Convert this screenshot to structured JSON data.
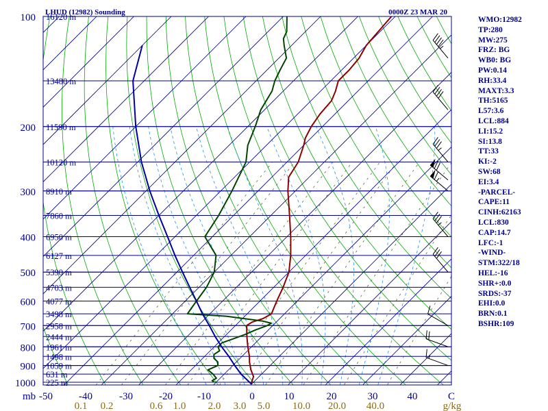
{
  "header": {
    "title": "LHUD (12982) Sounding",
    "time": "0000Z 23 MAR 20"
  },
  "chart_data": {
    "type": "line",
    "title": "LHUD (12982) Sounding",
    "subtitle": "0000Z 23 MAR 20",
    "y_axis": {
      "unit_label": "mb",
      "scale": "log",
      "range": [
        1000,
        100
      ],
      "tick_labels": [
        "100",
        "200",
        "300",
        "400",
        "500",
        "600",
        "700",
        "800",
        "900",
        "1000"
      ]
    },
    "x_axis": {
      "skewed": true,
      "temperature_range_c": [
        -50,
        50
      ],
      "tick_labels": [
        "-50",
        "-40",
        "-30",
        "-20",
        "-10",
        "0",
        "10",
        "20",
        "30",
        "40",
        "C"
      ],
      "mixing_ratio_labels": [
        "0.1",
        "0.2",
        "0.6",
        "1.0",
        "2.0",
        "3.0",
        "5.0",
        "10.0",
        "20.0",
        "40.0",
        "g/kg"
      ]
    },
    "height_labels": [
      {
        "p": 100,
        "label": "16120 m"
      },
      {
        "p": 150,
        "label": "13480 m"
      },
      {
        "p": 200,
        "label": "11590 m"
      },
      {
        "p": 250,
        "label": "10120 m"
      },
      {
        "p": 300,
        "label": "8910 m"
      },
      {
        "p": 350,
        "label": "7860 m"
      },
      {
        "p": 400,
        "label": "6950 m"
      },
      {
        "p": 450,
        "label": "6127 m"
      },
      {
        "p": 500,
        "label": "5390 m"
      },
      {
        "p": 550,
        "label": "4703 m"
      },
      {
        "p": 600,
        "label": "4077 m"
      },
      {
        "p": 650,
        "label": "3498 m"
      },
      {
        "p": 700,
        "label": "2958 m"
      },
      {
        "p": 750,
        "label": "2444 m"
      },
      {
        "p": 800,
        "label": "1961 m"
      },
      {
        "p": 850,
        "label": "1498 m"
      },
      {
        "p": 900,
        "label": "1059 m"
      },
      {
        "p": 950,
        "label": "631 m"
      },
      {
        "p": 1000,
        "label": "225 m"
      }
    ],
    "series": [
      {
        "type": "temperature",
        "color": "#8b0000",
        "points": [
          {
            "p": 1012,
            "t": 0.0
          },
          {
            "p": 1000,
            "t": -0.5
          },
          {
            "p": 965,
            "t": -1.5
          },
          {
            "p": 925,
            "t": -4.0
          },
          {
            "p": 880,
            "t": -6.5
          },
          {
            "p": 850,
            "t": -8.0
          },
          {
            "p": 800,
            "t": -11.0
          },
          {
            "p": 750,
            "t": -14.0
          },
          {
            "p": 700,
            "t": -17.0
          },
          {
            "p": 685,
            "t": -16.5
          },
          {
            "p": 670,
            "t": -14.5
          },
          {
            "p": 650,
            "t": -13.5
          },
          {
            "p": 600,
            "t": -15.5
          },
          {
            "p": 550,
            "t": -17.5
          },
          {
            "p": 500,
            "t": -20.0
          },
          {
            "p": 450,
            "t": -24.0
          },
          {
            "p": 400,
            "t": -29.0
          },
          {
            "p": 350,
            "t": -35.0
          },
          {
            "p": 300,
            "t": -42.0
          },
          {
            "p": 275,
            "t": -45.5
          },
          {
            "p": 250,
            "t": -47.0
          },
          {
            "p": 225,
            "t": -50.0
          },
          {
            "p": 215,
            "t": -51.5
          },
          {
            "p": 200,
            "t": -53.0
          },
          {
            "p": 185,
            "t": -54.0
          },
          {
            "p": 170,
            "t": -54.5
          },
          {
            "p": 160,
            "t": -56.0
          },
          {
            "p": 150,
            "t": -58.0
          },
          {
            "p": 140,
            "t": -58.0
          },
          {
            "p": 130,
            "t": -58.5
          },
          {
            "p": 120,
            "t": -60.0
          },
          {
            "p": 110,
            "t": -60.5
          },
          {
            "p": 100,
            "t": -61.0
          }
        ]
      },
      {
        "type": "dewpoint",
        "color": "#004400",
        "points": [
          {
            "p": 1000,
            "t": -10.5
          },
          {
            "p": 990,
            "t": -11.5
          },
          {
            "p": 975,
            "t": -11.0
          },
          {
            "p": 950,
            "t": -13.0
          },
          {
            "p": 925,
            "t": -15.5
          },
          {
            "p": 900,
            "t": -14.0
          },
          {
            "p": 880,
            "t": -15.0
          },
          {
            "p": 860,
            "t": -17.0
          },
          {
            "p": 840,
            "t": -18.0
          },
          {
            "p": 820,
            "t": -17.5
          },
          {
            "p": 800,
            "t": -19.0
          },
          {
            "p": 780,
            "t": -19.0
          },
          {
            "p": 760,
            "t": -17.0
          },
          {
            "p": 740,
            "t": -15.0
          },
          {
            "p": 720,
            "t": -13.5
          },
          {
            "p": 700,
            "t": -11.5
          },
          {
            "p": 690,
            "t": -11.0
          },
          {
            "p": 680,
            "t": -14.0
          },
          {
            "p": 660,
            "t": -25.0
          },
          {
            "p": 650,
            "t": -36.0
          },
          {
            "p": 600,
            "t": -37.0
          },
          {
            "p": 550,
            "t": -38.0
          },
          {
            "p": 500,
            "t": -40.0
          },
          {
            "p": 450,
            "t": -44.0
          },
          {
            "p": 400,
            "t": -52.0
          },
          {
            "p": 350,
            "t": -54.0
          },
          {
            "p": 300,
            "t": -57.0
          },
          {
            "p": 250,
            "t": -61.0
          },
          {
            "p": 225,
            "t": -65.0
          },
          {
            "p": 200,
            "t": -68.0
          },
          {
            "p": 180,
            "t": -71.0
          },
          {
            "p": 160,
            "t": -73.0
          },
          {
            "p": 150,
            "t": -75.0
          },
          {
            "p": 140,
            "t": -76.5
          },
          {
            "p": 130,
            "t": -78.0
          },
          {
            "p": 120,
            "t": -82.0
          },
          {
            "p": 115,
            "t": -84.0
          },
          {
            "p": 110,
            "t": -85.0
          },
          {
            "p": 100,
            "t": -89.0
          }
        ]
      },
      {
        "type": "parcel",
        "color": "#0000a0",
        "points": [
          {
            "p": 1012,
            "t": 0.0
          },
          {
            "p": 950,
            "t": -5.5
          },
          {
            "p": 900,
            "t": -9.5
          },
          {
            "p": 850,
            "t": -13.5
          },
          {
            "p": 800,
            "t": -18.0
          },
          {
            "p": 750,
            "t": -22.5
          },
          {
            "p": 700,
            "t": -27.0
          },
          {
            "p": 650,
            "t": -32.0
          },
          {
            "p": 600,
            "t": -37.0
          },
          {
            "p": 550,
            "t": -42.5
          },
          {
            "p": 500,
            "t": -48.5
          },
          {
            "p": 450,
            "t": -55.0
          },
          {
            "p": 400,
            "t": -62.0
          },
          {
            "p": 350,
            "t": -70.0
          },
          {
            "p": 300,
            "t": -79.0
          },
          {
            "p": 250,
            "t": -89.0
          },
          {
            "p": 200,
            "t": -100.0
          },
          {
            "p": 150,
            "t": -113.0
          },
          {
            "p": 120,
            "t": -120.0
          }
        ]
      }
    ],
    "wind_barbs": [
      {
        "p": 130,
        "dir": 320,
        "spd": 45
      },
      {
        "p": 180,
        "dir": 320,
        "spd": 40
      },
      {
        "p": 250,
        "dir": 320,
        "spd": 35
      },
      {
        "p": 280,
        "dir": 310,
        "spd": 70
      },
      {
        "p": 300,
        "dir": 310,
        "spd": 65
      },
      {
        "p": 400,
        "dir": 320,
        "spd": 35
      },
      {
        "p": 500,
        "dir": 320,
        "spd": 30
      },
      {
        "p": 700,
        "dir": 300,
        "spd": 10
      },
      {
        "p": 800,
        "dir": 290,
        "spd": 20
      },
      {
        "p": 900,
        "dir": 290,
        "spd": 15
      }
    ]
  },
  "indices": [
    "WMO:12982",
    "TP:280",
    "MW:275",
    "FRZ: BG",
    "WB0: BG",
    "PW:0.14",
    "RH:33.4",
    "MAXT:3.3",
    "TH:5165",
    "L57:3.6",
    "LCL:884",
    "LI:15.2",
    "SI:13.8",
    "TT:33",
    "KI:-2",
    "SW:68",
    "EI:3.4",
    "-PARCEL-",
    "CAPE:11",
    "CINH:62163",
    "LCL:830",
    "CAP:14.7",
    "LFC:-1",
    "-WIND-",
    "STM:322/18",
    "HEL:-16",
    "SHR+:0.0",
    "SRDS:-37",
    "EHI:0.0",
    "BRN:0.1",
    "BSHR:109"
  ],
  "colors": {
    "isobar": "#00008b",
    "isotherm": "#00008b",
    "dry_adiabat": "#00aa00",
    "moist_adiabat": "#1e90ff",
    "mixing_ratio": "#556b2f",
    "mixing_label": "#8b6914",
    "temperature": "#8b0000",
    "dewpoint": "#004400",
    "parcel": "#0000a0",
    "text": "#00008b"
  }
}
